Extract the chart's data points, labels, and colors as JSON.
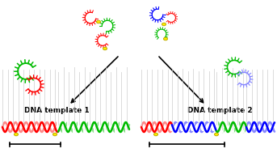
{
  "bg_color": "#ffffff",
  "colors": {
    "red": "#ff0000",
    "green": "#00bb00",
    "blue": "#0000ff",
    "pink": "#ff8888",
    "light_green": "#88dd88",
    "light_blue": "#8888ff",
    "yellow": "#ffee00",
    "gold": "#bbaa00",
    "black": "#000000"
  },
  "text_dna1": "DNA template 1",
  "text_dna2": "DNA template 2",
  "text_fontsize": 6.5,
  "text_fontweight": "bold",
  "fig_width": 3.43,
  "fig_height": 1.89,
  "dpi": 100
}
